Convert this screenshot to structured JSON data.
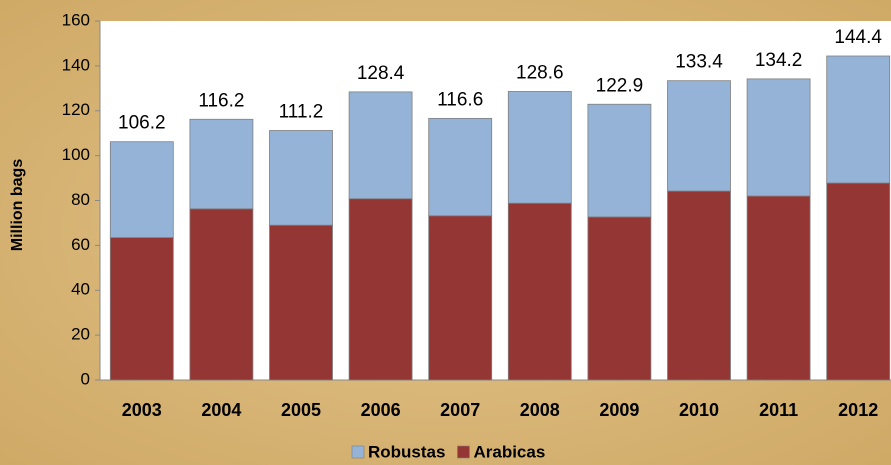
{
  "chart_data": {
    "type": "stacked_bar",
    "y_label": "Million bags",
    "categories": [
      "2003",
      "2004",
      "2005",
      "2006",
      "2007",
      "2008",
      "2009",
      "2010",
      "2011",
      "2012"
    ],
    "series": [
      {
        "name": "Arabicas",
        "color": "#943634",
        "values": [
          63.5,
          76.3,
          69,
          80.8,
          73.2,
          78.8,
          72.7,
          84.2,
          82,
          87.8
        ]
      },
      {
        "name": "Robustas",
        "color": "#95b3d7",
        "values": [
          42.7,
          39.9,
          42.2,
          47.6,
          43.4,
          49.8,
          50.2,
          49.2,
          52.2,
          56.6
        ]
      }
    ],
    "totals": [
      106.2,
      116.2,
      111.2,
      128.4,
      116.6,
      128.6,
      122.9,
      133.4,
      134.2,
      144.4
    ],
    "ylim": [
      0,
      160
    ],
    "yticks": [
      0,
      20,
      40,
      60,
      80,
      100,
      120,
      140,
      160
    ],
    "legend_order": [
      1,
      0
    ],
    "legend": "bottom"
  }
}
